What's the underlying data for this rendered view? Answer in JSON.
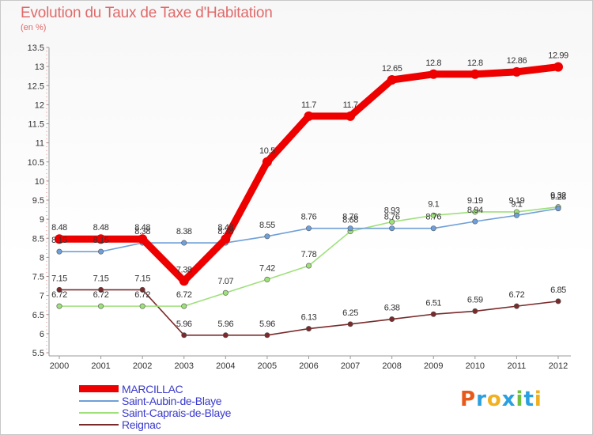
{
  "chart_data": {
    "type": "line",
    "title": "Evolution du Taux de Taxe d'Habitation",
    "subtitle": "(en %)",
    "x": [
      "2000",
      "2001",
      "2002",
      "2003",
      "2004",
      "2005",
      "2006",
      "2007",
      "2008",
      "2009",
      "2010",
      "2011",
      "2012"
    ],
    "ylim": [
      5.5,
      13.5
    ],
    "yticks": [
      "5.5",
      "6",
      "6.5",
      "7",
      "7.5",
      "8",
      "8.5",
      "9",
      "9.5",
      "10",
      "10.5",
      "11",
      "11.5",
      "12",
      "12.5",
      "13",
      "13.5"
    ],
    "grid": false,
    "legend_position": "bottom-left",
    "series": [
      {
        "name": "MARCILLAC",
        "color": "#ee0000",
        "values": [
          8.48,
          8.48,
          8.48,
          7.38,
          8.48,
          10.5,
          11.7,
          11.7,
          12.65,
          12.8,
          12.8,
          12.86,
          12.99
        ],
        "labels": [
          "8.48",
          "8.48",
          "8.48",
          "7.38",
          "8.48",
          "10.5",
          "11.7",
          "11.7",
          "12.65",
          "12.8",
          "12.8",
          "12.86",
          "12.99"
        ]
      },
      {
        "name": "Saint-Aubin-de-Blaye",
        "color": "#6f9fd8",
        "values": [
          8.15,
          8.15,
          8.38,
          8.38,
          8.38,
          8.55,
          8.76,
          8.76,
          8.76,
          8.76,
          8.94,
          9.1,
          9.28
        ],
        "labels": [
          "8.15",
          "8.15",
          "8.38",
          "8.38",
          "8.38",
          "8.55",
          "8.76",
          "8.76",
          "8.76",
          "8.76",
          "8.94",
          "9.1",
          "9.28"
        ]
      },
      {
        "name": "Saint-Caprais-de-Blaye",
        "color": "#9ee07a",
        "values": [
          6.72,
          6.72,
          6.72,
          6.72,
          7.07,
          7.42,
          7.78,
          8.68,
          8.93,
          9.1,
          9.19,
          9.19,
          9.32
        ],
        "labels": [
          "6.72",
          "6.72",
          "6.72",
          "6.72",
          "7.07",
          "7.42",
          "7.78",
          "8.68",
          "8.93",
          "9.1",
          "9.19",
          "9.19",
          "9.32"
        ]
      },
      {
        "name": "Reignac",
        "color": "#7a2a2a",
        "values": [
          7.15,
          7.15,
          7.15,
          5.96,
          5.96,
          5.96,
          6.13,
          6.25,
          6.38,
          6.51,
          6.59,
          6.72,
          6.85
        ],
        "labels": [
          "7.15",
          "7.15",
          "7.15",
          "5.96",
          "5.96",
          "5.96",
          "6.13",
          "6.25",
          "6.38",
          "6.51",
          "6.59",
          "6.72",
          "6.85"
        ]
      }
    ]
  },
  "logo": {
    "letters": [
      "P",
      "r",
      "o",
      "x",
      "i",
      "t",
      "i"
    ],
    "colors": [
      "#e85a1a",
      "#2aa0e0",
      "#f0b020",
      "#2aa0e0",
      "#70c040",
      "#2aa0e0",
      "#f0b020"
    ]
  }
}
